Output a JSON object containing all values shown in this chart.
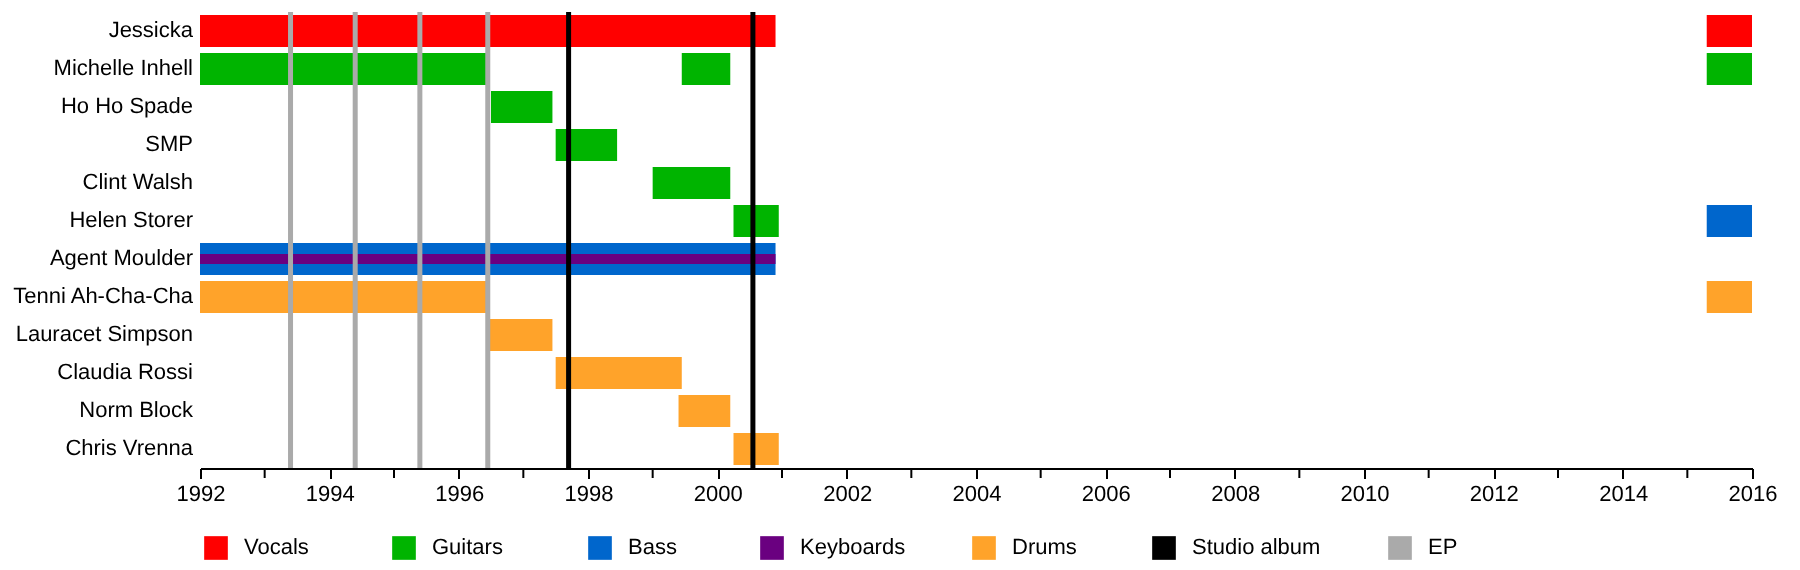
{
  "chart_data": {
    "type": "bar",
    "orientation": "horizontal",
    "categories": [
      "Jessicka",
      "Michelle Inhell",
      "Ho Ho Spade",
      "SMP",
      "Clint Walsh",
      "Helen Storer",
      "Agent Moulder",
      "Tenni Ah-Cha-Cha",
      "Lauracet Simpson",
      "Claudia Rossi",
      "Norm Block",
      "Chris Vrenna"
    ],
    "series": [
      {
        "name": "Vocals",
        "color": "#ff0000",
        "base": [
          1992,
          null,
          null,
          null,
          null,
          null,
          null,
          null,
          null,
          null,
          null,
          null
        ],
        "values": [
          8.9,
          null,
          null,
          null,
          null,
          null,
          null,
          null,
          null,
          null,
          null,
          null
        ]
      },
      {
        "color": "#ff0000",
        "base": [
          2015.3,
          null,
          null,
          null,
          null,
          null,
          null,
          null,
          null,
          null,
          null,
          null
        ],
        "values": [
          0.7,
          null,
          null,
          null,
          null,
          null,
          null,
          null,
          null,
          null,
          null,
          null
        ]
      },
      {
        "name": "Guitars",
        "color": "#00b400",
        "base": [
          null,
          1992,
          1996.5,
          1997.5,
          1999.0,
          2000.25,
          null,
          null,
          null,
          null,
          null,
          null
        ],
        "values": [
          null,
          4.45,
          0.95,
          0.95,
          1.2,
          0.7,
          null,
          null,
          null,
          null,
          null,
          null
        ]
      },
      {
        "color": "#00b400",
        "base": [
          null,
          1999.45,
          null,
          null,
          null,
          null,
          null,
          null,
          null,
          null,
          null,
          null
        ],
        "values": [
          null,
          0.75,
          null,
          null,
          null,
          null,
          null,
          null,
          null,
          null,
          null,
          null
        ]
      },
      {
        "color": "#00b400",
        "base": [
          null,
          2015.3,
          null,
          null,
          null,
          null,
          null,
          null,
          null,
          null,
          null,
          null
        ],
        "values": [
          null,
          0.7,
          null,
          null,
          null,
          null,
          null,
          null,
          null,
          null,
          null,
          null
        ]
      },
      {
        "name": "Bass",
        "color": "#0066cc",
        "base": [
          null,
          null,
          null,
          null,
          null,
          2015.3,
          1992,
          null,
          null,
          null,
          null,
          null
        ],
        "values": [
          null,
          null,
          null,
          null,
          null,
          0.7,
          8.9,
          null,
          null,
          null,
          null,
          null
        ]
      },
      {
        "name": "Keyboards",
        "color": "#6a0080",
        "base": [
          null,
          null,
          null,
          null,
          null,
          null,
          1992,
          null,
          null,
          null,
          null,
          null
        ],
        "values": [
          null,
          null,
          null,
          null,
          null,
          null,
          8.9,
          null,
          null,
          null,
          null,
          null
        ]
      },
      {
        "name": "Drums",
        "color": "#ffa32a",
        "base": [
          null,
          null,
          null,
          null,
          null,
          null,
          null,
          1992,
          1996.45,
          1997.5,
          1999.4,
          2000.25
        ],
        "values": [
          null,
          null,
          null,
          null,
          null,
          null,
          null,
          4.45,
          1.0,
          1.95,
          0.8,
          0.7
        ]
      },
      {
        "color": "#ffa32a",
        "base": [
          null,
          null,
          null,
          null,
          null,
          null,
          null,
          2015.3,
          null,
          null,
          null,
          null
        ],
        "values": [
          null,
          null,
          null,
          null,
          null,
          null,
          null,
          0.7,
          null,
          null,
          null,
          null
        ]
      }
    ],
    "ref_lines": [
      {
        "axis": "x",
        "value": 1997.7,
        "label": "Studio album",
        "color": "#000000"
      },
      {
        "axis": "x",
        "value": 2000.55,
        "color": "#000000"
      },
      {
        "axis": "x",
        "value": 1993.4,
        "label": "EP",
        "color": "#aaaaaa"
      },
      {
        "axis": "x",
        "value": 1994.4,
        "color": "#aaaaaa"
      },
      {
        "axis": "x",
        "value": 1995.4,
        "color": "#aaaaaa"
      },
      {
        "axis": "x",
        "value": 1996.45,
        "color": "#aaaaaa"
      }
    ],
    "xlim": [
      1992,
      2016
    ],
    "xticks": [
      1992,
      {
        "value": 1993,
        "label": null
      },
      1994,
      {
        "value": 1995,
        "label": null
      },
      1996,
      {
        "value": 1997,
        "label": null
      },
      1998,
      {
        "value": 1999,
        "label": null
      },
      2000,
      {
        "value": 2001,
        "label": null
      },
      2002,
      {
        "value": 2003,
        "label": null
      },
      2004,
      {
        "value": 2005,
        "label": null
      },
      2006,
      {
        "value": 2007,
        "label": null
      },
      2008,
      {
        "value": 2009,
        "label": null
      },
      2010,
      {
        "value": 2011,
        "label": null
      },
      2012,
      {
        "value": 2013,
        "label": null
      },
      2014,
      {
        "value": 2015,
        "label": null
      },
      2016
    ],
    "legend": "bottom"
  }
}
